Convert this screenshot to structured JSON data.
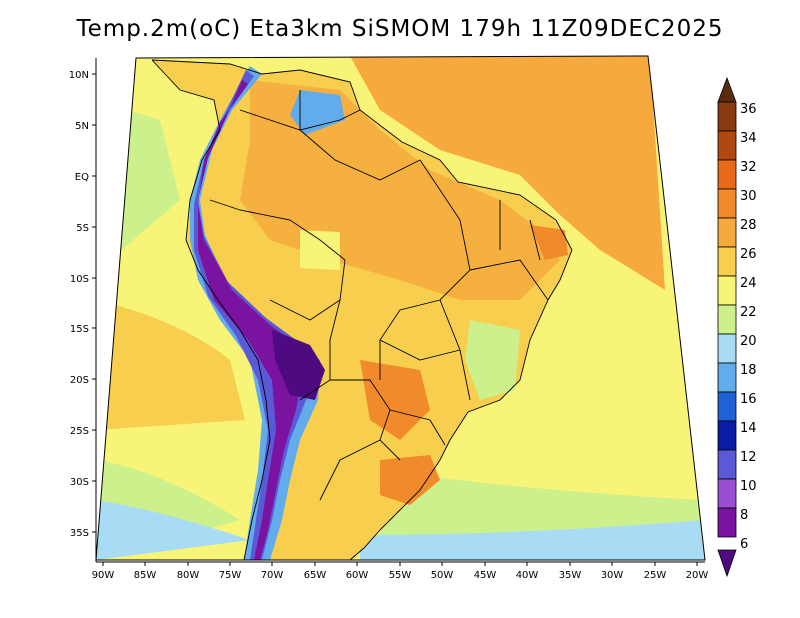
{
  "title": "Temp.2m(oC) Eta3km SiSMOM 179h 11Z09DEC2025",
  "lat_labels": [
    "10N",
    "5N",
    "EQ",
    "5S",
    "10S",
    "15S",
    "20S",
    "25S",
    "30S",
    "35S"
  ],
  "lon_labels": [
    "90W",
    "85W",
    "80W",
    "75W",
    "70W",
    "65W",
    "60W",
    "55W",
    "50W",
    "45W",
    "40W",
    "35W",
    "30W",
    "25W",
    "20W"
  ],
  "colorbar": {
    "labels": [
      "36",
      "34",
      "32",
      "30",
      "28",
      "26",
      "24",
      "22",
      "20",
      "18",
      "16",
      "14",
      "12",
      "10",
      "8",
      "6"
    ],
    "colors": [
      "#5c2a0c",
      "#8a3a10",
      "#b0480f",
      "#e66a1a",
      "#f08a2a",
      "#f6aa3e",
      "#f8ce4e",
      "#f8f478",
      "#ccf08c",
      "#a8dcf4",
      "#62acec",
      "#1e62d6",
      "#0a1ca6",
      "#5a5ad6",
      "#9a4ed6",
      "#7a14a0",
      "#4e0a80"
    ]
  },
  "fields": {
    "ocean": "#f6aa3e",
    "ocean_warm": "#f6aa3e",
    "land": "#f8ce4e",
    "andes_high": "#7a14a0",
    "andes_mid": "#5a5ad6",
    "andes_low": "#62acec",
    "south_cool": "#ccf08c",
    "south_sea": "#a8dcf4"
  }
}
